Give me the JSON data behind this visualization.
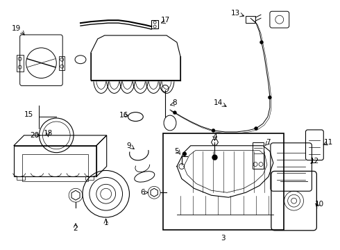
{
  "background_color": "#ffffff",
  "line_color": "#000000",
  "text_color": "#000000",
  "fig_width": 4.9,
  "fig_height": 3.6,
  "dpi": 100
}
